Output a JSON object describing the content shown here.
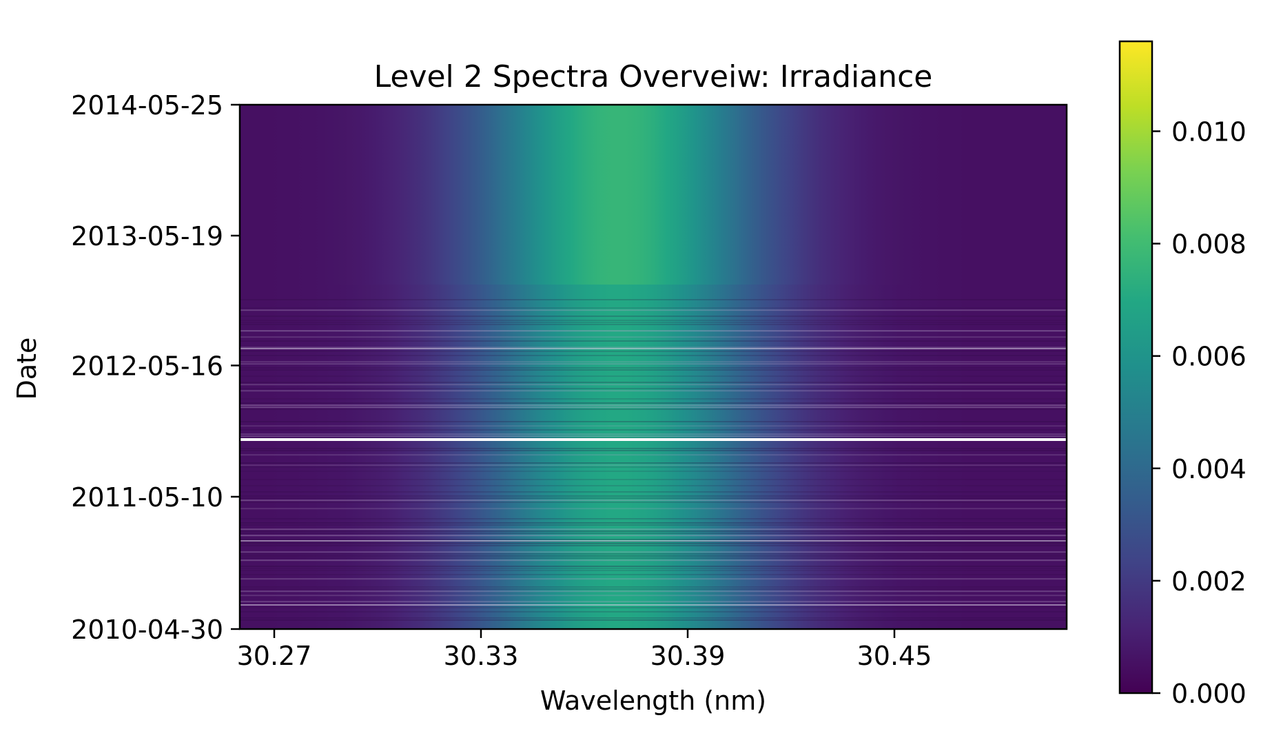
{
  "chart_data": {
    "type": "heatmap",
    "title": "Level 2 Spectra Overveiw: Irradiance",
    "xlabel": "Wavelength (nm)",
    "ylabel": "Date",
    "xlim": [
      30.26,
      30.5
    ],
    "ylim": [
      "2010-04-30",
      "2014-05-25"
    ],
    "x_ticks": [
      30.27,
      30.33,
      30.39,
      30.45
    ],
    "x_tick_labels": [
      "30.27",
      "30.33",
      "30.39",
      "30.45"
    ],
    "y_ticks": [
      "2010-04-30",
      "2011-05-10",
      "2012-05-16",
      "2013-05-19",
      "2014-05-25"
    ],
    "y_tick_labels": [
      "2010-04-30",
      "2011-05-10",
      "2012-05-16",
      "2013-05-19",
      "2014-05-25"
    ],
    "spectral_line_center_nm": 30.37,
    "spectral_line_half_width_nm": 0.05,
    "peak_irradiance_before_2012-11": 0.0065,
    "peak_irradiance_after_2012-11": 0.0072,
    "data_gap_date": "2011-12-05",
    "data_end_noisy_date": "2012-11-20",
    "colorbar": {
      "colormap": "viridis",
      "range": [
        0.0,
        0.0116
      ],
      "ticks": [
        0.0,
        0.002,
        0.004,
        0.006,
        0.008,
        0.01
      ],
      "tick_labels": [
        "0.000",
        "0.002",
        "0.004",
        "0.006",
        "0.008",
        "0.010"
      ]
    },
    "colors": {
      "viridis_low": "#440154",
      "viridis_mid": "#21918c",
      "viridis_high": "#fde725"
    }
  }
}
